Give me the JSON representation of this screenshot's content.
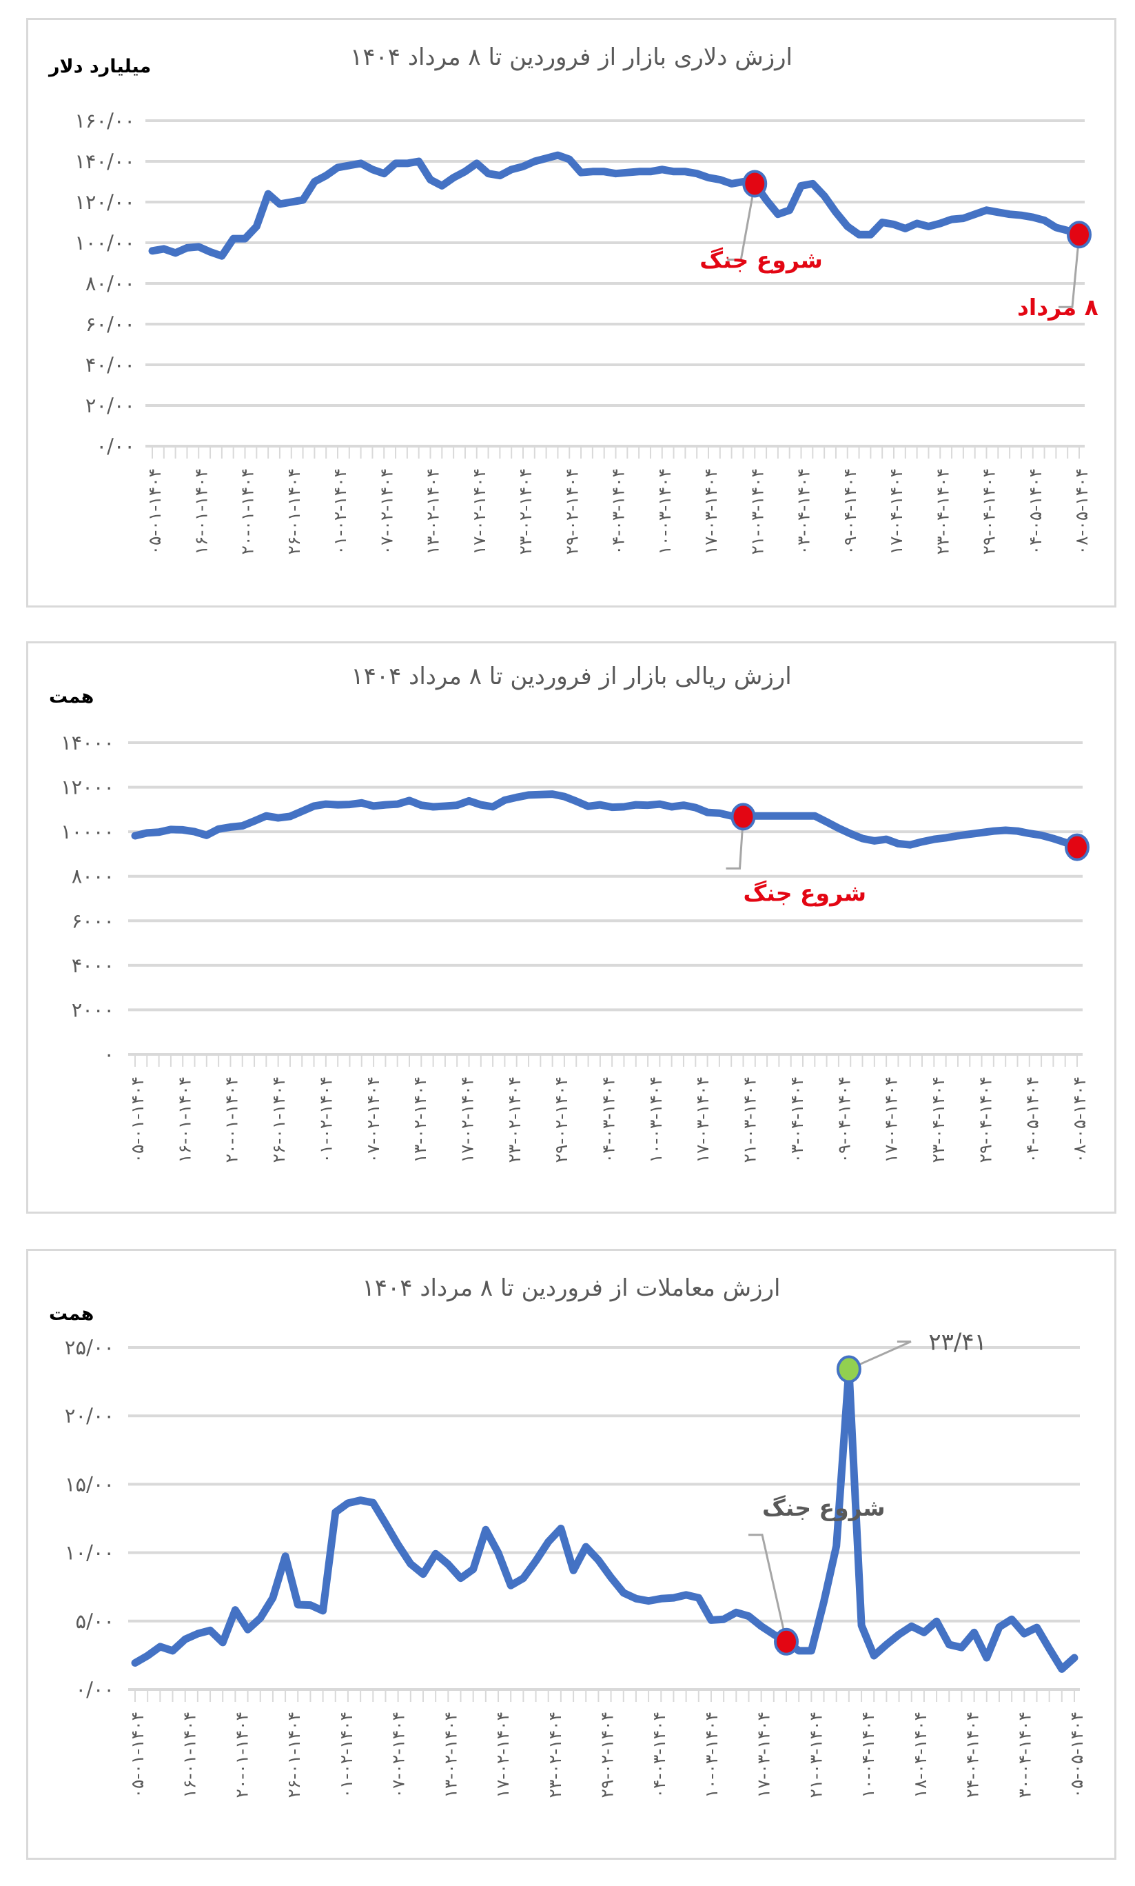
{
  "page": {
    "charts": [
      {
        "title": "ارزش دلاری بازار از فروردین تا ۸ مرداد ۱۴۰۴",
        "unit": "میلیارد دلار"
      },
      {
        "title": "ارزش ریالی بازار از فروردین تا ۸ مرداد ۱۴۰۴",
        "unit": "همت"
      },
      {
        "title": "ارزش معاملات از فروردین تا ۸ مرداد ۱۴۰۴",
        "unit": "همت"
      }
    ]
  },
  "colors": {
    "line": "#4472c4",
    "grid": "#d9d9d9",
    "marker_red": "#e30613",
    "marker_green": "#92d050",
    "text": "#595959",
    "annotation_red": "#e30613"
  },
  "chart_data": [
    {
      "type": "line",
      "title": "ارزش دلاری بازار از فروردین تا ۸ مرداد ۱۴۰۴",
      "xlabel": "",
      "ylabel": "میلیارد دلار",
      "ylim": [
        0,
        160
      ],
      "yticks": [
        0,
        20,
        40,
        60,
        80,
        100,
        120,
        140,
        160
      ],
      "ytick_labels": [
        "۰/۰۰",
        "۲۰/۰۰",
        "۴۰/۰۰",
        "۶۰/۰۰",
        "۸۰/۰۰",
        "۱۰۰/۰۰",
        "۱۲۰/۰۰",
        "۱۴۰/۰۰",
        "۱۶۰/۰۰"
      ],
      "grid": true,
      "xtick_labels": [
        "۰۵-۰۱-۱۴۰۴",
        "۱۶-۰۱-۱۴۰۴",
        "۲۰-۰۱-۱۴۰۴",
        "۲۶-۰۱-۱۴۰۴",
        "۰۱-۰۲-۱۴۰۴",
        "۰۷-۰۲-۱۴۰۴",
        "۱۳-۰۲-۱۴۰۴",
        "۱۷-۰۲-۱۴۰۴",
        "۲۳-۰۲-۱۴۰۴",
        "۲۹-۰۲-۱۴۰۴",
        "۰۴-۰۳-۱۴۰۴",
        "۱۰-۰۳-۱۴۰۴",
        "۱۷-۰۳-۱۴۰۴",
        "۲۱-۰۳-۱۴۰۴",
        "۰۳-۰۴-۱۴۰۴",
        "۰۹-۰۴-۱۴۰۴",
        "۱۷-۰۴-۱۴۰۴",
        "۲۳-۰۴-۱۴۰۴",
        "۲۹-۰۴-۱۴۰۴",
        "۰۴-۰۵-۱۴۰۴",
        "۰۸-۰۵-۱۴۰۴"
      ],
      "series": [
        {
          "name": "ارزش دلاری بازار",
          "values": [
            96,
            97,
            95,
            97.5,
            98,
            95.5,
            93.5,
            102,
            102,
            108,
            124,
            119,
            120,
            121,
            130,
            133,
            137,
            138,
            139,
            136,
            134,
            139,
            139,
            140,
            131,
            128,
            132,
            135,
            139,
            134,
            133,
            136,
            137.5,
            140,
            141.5,
            143,
            141,
            134.5,
            135,
            135,
            134,
            134.5,
            135,
            135,
            136,
            135,
            135,
            134,
            132,
            131,
            129,
            130,
            129,
            121,
            114,
            116,
            128,
            129,
            123,
            115,
            108,
            104,
            104,
            110,
            109,
            107,
            109.5,
            108,
            109.5,
            111.5,
            112,
            114,
            116,
            115,
            114,
            113.5,
            112.5,
            111,
            107.5,
            106,
            104
          ]
        }
      ],
      "annotations": [
        {
          "text": "شروع جنگ",
          "index": 52,
          "color": "#e30613",
          "marker": "#e30613"
        },
        {
          "text": "۸ مرداد",
          "index": 80,
          "color": "#e30613",
          "marker": "#e30613"
        }
      ]
    },
    {
      "type": "line",
      "title": "ارزش ریالی بازار از فروردین تا ۸ مرداد ۱۴۰۴",
      "xlabel": "",
      "ylabel": "همت",
      "ylim": [
        0,
        14000
      ],
      "yticks": [
        0,
        2000,
        4000,
        6000,
        8000,
        10000,
        12000,
        14000
      ],
      "ytick_labels": [
        "۰",
        "۲۰۰۰",
        "۴۰۰۰",
        "۶۰۰۰",
        "۸۰۰۰",
        "۱۰۰۰۰",
        "۱۲۰۰۰",
        "۱۴۰۰۰"
      ],
      "grid": true,
      "xtick_labels": [
        "۰۵-۰۱-۱۴۰۴",
        "۱۶-۰۱-۱۴۰۴",
        "۲۰-۰۱-۱۴۰۴",
        "۲۶-۰۱-۱۴۰۴",
        "۰۱-۰۲-۱۴۰۴",
        "۰۷-۰۲-۱۴۰۴",
        "۱۳-۰۲-۱۴۰۴",
        "۱۷-۰۲-۱۴۰۴",
        "۲۳-۰۲-۱۴۰۴",
        "۲۹-۰۲-۱۴۰۴",
        "۰۴-۰۳-۱۴۰۴",
        "۱۰-۰۳-۱۴۰۴",
        "۱۷-۰۳-۱۴۰۴",
        "۲۱-۰۳-۱۴۰۴",
        "۰۳-۰۴-۱۴۰۴",
        "۰۹-۰۴-۱۴۰۴",
        "۱۷-۰۴-۱۴۰۴",
        "۲۳-۰۴-۱۴۰۴",
        "۲۹-۰۴-۱۴۰۴",
        "۰۴-۰۵-۱۴۰۴",
        "۰۸-۰۵-۱۴۰۴"
      ],
      "series": [
        {
          "name": "ارزش ریالی بازار",
          "values": [
            9820,
            9945,
            9980,
            10100,
            10085,
            10000,
            9840,
            10120,
            10210,
            10265,
            10480,
            10710,
            10620,
            10690,
            10920,
            11155,
            11240,
            11210,
            11225,
            11295,
            11155,
            11210,
            11240,
            11400,
            11190,
            11120,
            11150,
            11190,
            11385,
            11210,
            11120,
            11420,
            11545,
            11650,
            11670,
            11690,
            11580,
            11370,
            11140,
            11210,
            11100,
            11120,
            11210,
            11190,
            11240,
            11120,
            11190,
            11085,
            10870,
            10835,
            10710,
            10675,
            10710,
            10710,
            10710,
            10710,
            10710,
            10710,
            10440,
            10160,
            9910,
            9695,
            9590,
            9660,
            9465,
            9410,
            9550,
            9660,
            9730,
            9820,
            9890,
            9960,
            10030,
            10065,
            10030,
            9925,
            9840,
            9695,
            9520,
            9305
          ]
        }
      ],
      "annotations": [
        {
          "text": "شروع جنگ",
          "index": 51,
          "color": "#e30613",
          "marker": "#e30613"
        },
        {
          "text": "",
          "index": 79,
          "color": "#e30613",
          "marker": "#e30613"
        }
      ]
    },
    {
      "type": "line",
      "title": "ارزش معاملات از فروردین تا ۸ مرداد ۱۴۰۴",
      "xlabel": "",
      "ylabel": "همت",
      "ylim": [
        0,
        25
      ],
      "yticks": [
        0,
        5,
        10,
        15,
        20,
        25
      ],
      "ytick_labels": [
        "۰/۰۰",
        "۵/۰۰",
        "۱۰/۰۰",
        "۱۵/۰۰",
        "۲۰/۰۰",
        "۲۵/۰۰"
      ],
      "grid": true,
      "xtick_labels": [
        "۰۵-۰۱-۱۴۰۴",
        "۱۶-۰۱-۱۴۰۴",
        "۲۰-۰۱-۱۴۰۴",
        "۲۶-۰۱-۱۴۰۴",
        "۰۱-۰۲-۱۴۰۴",
        "۰۷-۰۲-۱۴۰۴",
        "۱۳-۰۲-۱۴۰۴",
        "۱۷-۰۲-۱۴۰۴",
        "۲۳-۰۲-۱۴۰۴",
        "۲۹-۰۲-۱۴۰۴",
        "۰۴-۰۳-۱۴۰۴",
        "۱۰-۰۳-۱۴۰۴",
        "۱۷-۰۳-۱۴۰۴",
        "۲۱-۰۳-۱۴۰۴",
        "۱۰-۰۴-۱۴۰۴",
        "۱۸-۰۴-۱۴۰۴",
        "۲۴-۰۴-۱۴۰۴",
        "۳۰-۰۴-۱۴۰۴",
        "۰۵-۰۵-۱۴۰۴"
      ],
      "series": [
        {
          "name": "ارزش معاملات",
          "values": [
            1.94,
            2.47,
            3.13,
            2.83,
            3.67,
            4.08,
            4.32,
            3.43,
            5.81,
            4.38,
            5.21,
            6.7,
            9.74,
            6.2,
            6.17,
            5.75,
            12.96,
            13.62,
            13.83,
            13.65,
            12.13,
            10.58,
            9.18,
            8.43,
            9.92,
            9.15,
            8.13,
            8.79,
            11.68,
            9.98,
            7.6,
            8.13,
            9.39,
            10.79,
            11.77,
            8.7,
            10.43,
            9.45,
            8.19,
            7.06,
            6.64,
            6.47,
            6.64,
            6.7,
            6.91,
            6.7,
            5.07,
            5.13,
            5.63,
            5.36,
            4.62,
            4.02,
            3.49,
            2.83,
            2.83,
            6.41,
            10.49,
            23.41,
            4.68,
            2.47,
            3.28,
            4.02,
            4.62,
            4.17,
            4.98,
            3.28,
            3.07,
            4.17,
            2.32,
            4.56,
            5.13,
            4.08,
            4.53,
            2.98,
            1.49,
            2.32
          ]
        }
      ],
      "annotations": [
        {
          "text": "شروع جنگ",
          "index": 52,
          "color": "#595959",
          "marker": "#e30613"
        },
        {
          "text": "۲۳/۴۱",
          "index": 57,
          "color": "#595959",
          "marker": "#92d050"
        }
      ]
    }
  ]
}
